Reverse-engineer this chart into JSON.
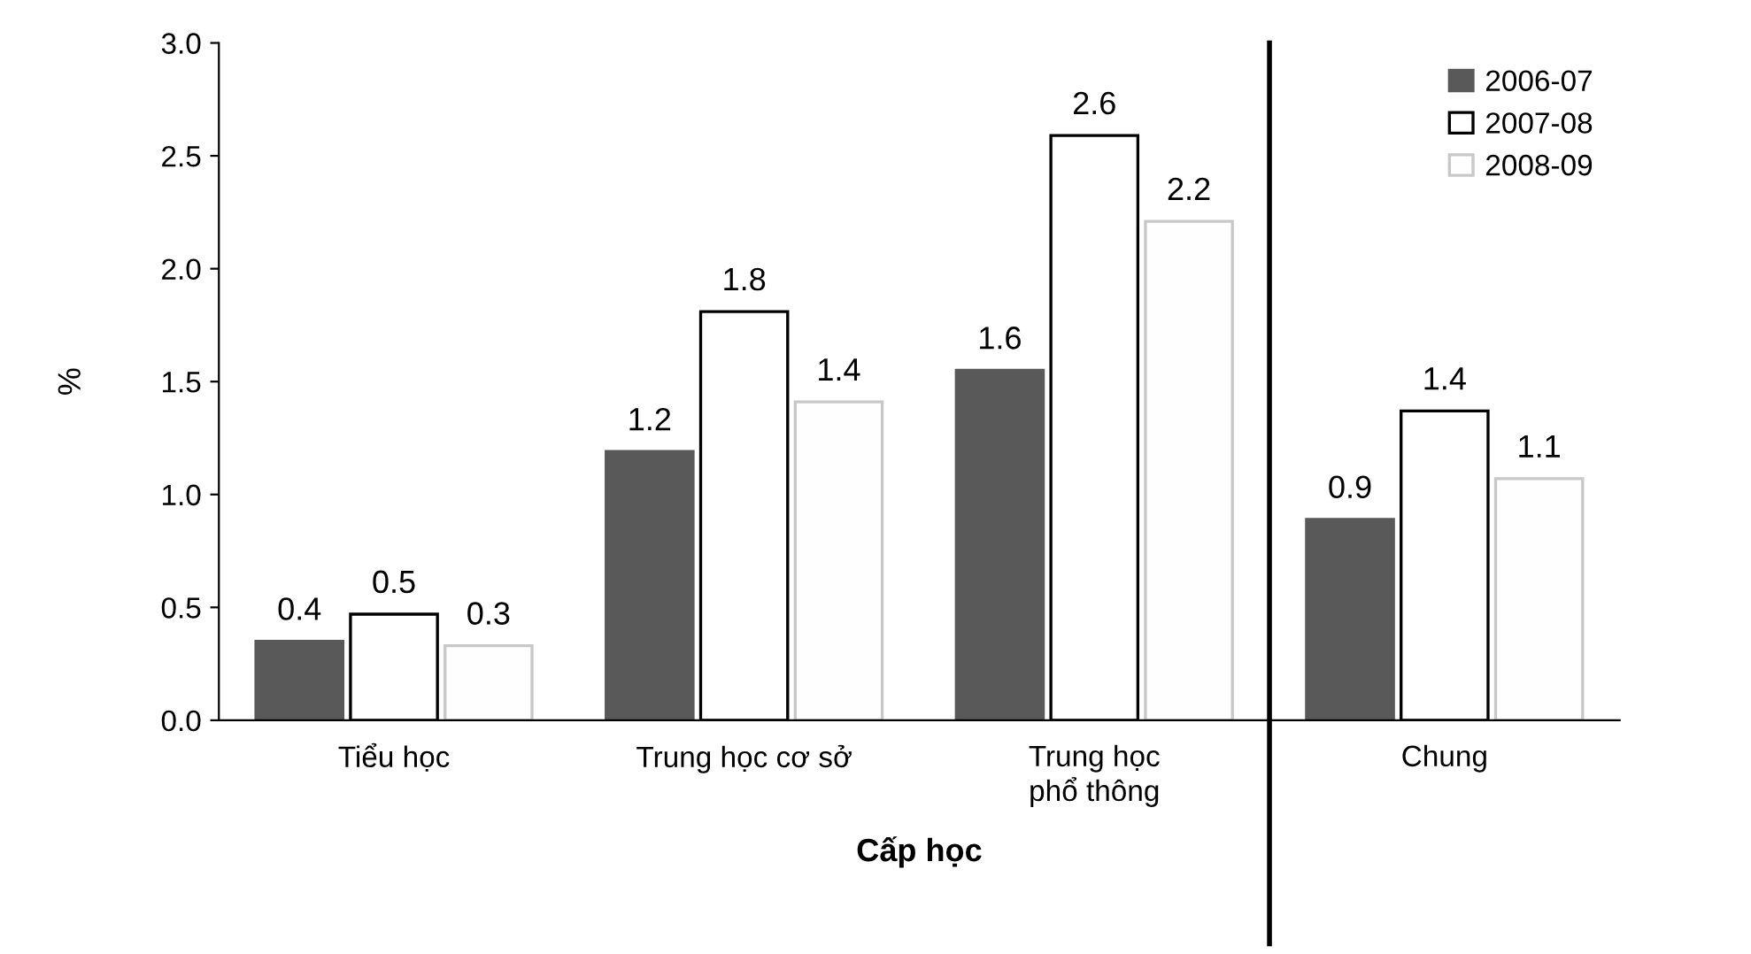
{
  "chart_data": {
    "type": "bar",
    "xlabel": "Cấp học",
    "ylabel": "%",
    "categories": [
      "Tiểu học",
      "Trung học cơ sở",
      "Trung học\nphổ thông",
      "Chung"
    ],
    "series": [
      {
        "name": "2006-07",
        "color": "#595959",
        "values": [
          0.35,
          1.19,
          1.55,
          0.89
        ],
        "value_labels": [
          "0.4",
          "1.2",
          "1.6",
          "0.9"
        ]
      },
      {
        "name": "2007-08",
        "color": "#ffffff",
        "values": [
          0.47,
          1.81,
          2.59,
          1.37
        ],
        "value_labels": [
          "0.5",
          "1.8",
          "2.6",
          "1.4"
        ]
      },
      {
        "name": "2008-09",
        "color": "#fefefe",
        "values": [
          0.33,
          1.41,
          2.21,
          1.07
        ],
        "value_labels": [
          "0.3",
          "1.4",
          "2.2",
          "1.1"
        ]
      }
    ],
    "ylim": [
      0,
      3
    ],
    "yticks": [
      {
        "value": 0,
        "label": "0.0"
      },
      {
        "value": 0.5,
        "label": "0.5"
      },
      {
        "value": 1,
        "label": "1.0"
      },
      {
        "value": 1.5,
        "label": "1.5"
      },
      {
        "value": 2,
        "label": "2.0"
      },
      {
        "value": 2.5,
        "label": "2.5"
      },
      {
        "value": 3,
        "label": "3.0"
      }
    ],
    "grid": false,
    "legend": "top right"
  }
}
